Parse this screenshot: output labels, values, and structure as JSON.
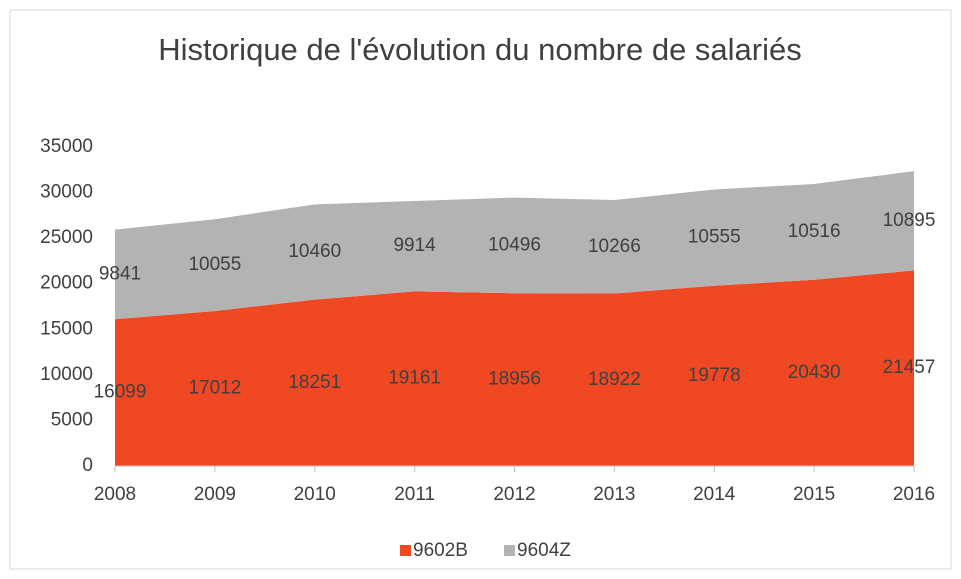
{
  "chart_data": {
    "type": "area",
    "stacked": true,
    "title": "Historique de l'évolution du nombre de salariés",
    "categories": [
      "2008",
      "2009",
      "2010",
      "2011",
      "2012",
      "2013",
      "2014",
      "2015",
      "2016"
    ],
    "series": [
      {
        "name": "9602B",
        "color": "#ef4823",
        "values": [
          16099,
          17012,
          18251,
          19161,
          18956,
          18922,
          19778,
          20430,
          21457
        ]
      },
      {
        "name": "9604Z",
        "color": "#b3b3b3",
        "values": [
          9841,
          10055,
          10460,
          9914,
          10496,
          10266,
          10555,
          10516,
          10895
        ]
      }
    ],
    "ylim": [
      0,
      35000
    ],
    "yticks": [
      0,
      5000,
      10000,
      15000,
      20000,
      25000,
      30000,
      35000
    ],
    "grid": false,
    "legend": "bottom"
  }
}
